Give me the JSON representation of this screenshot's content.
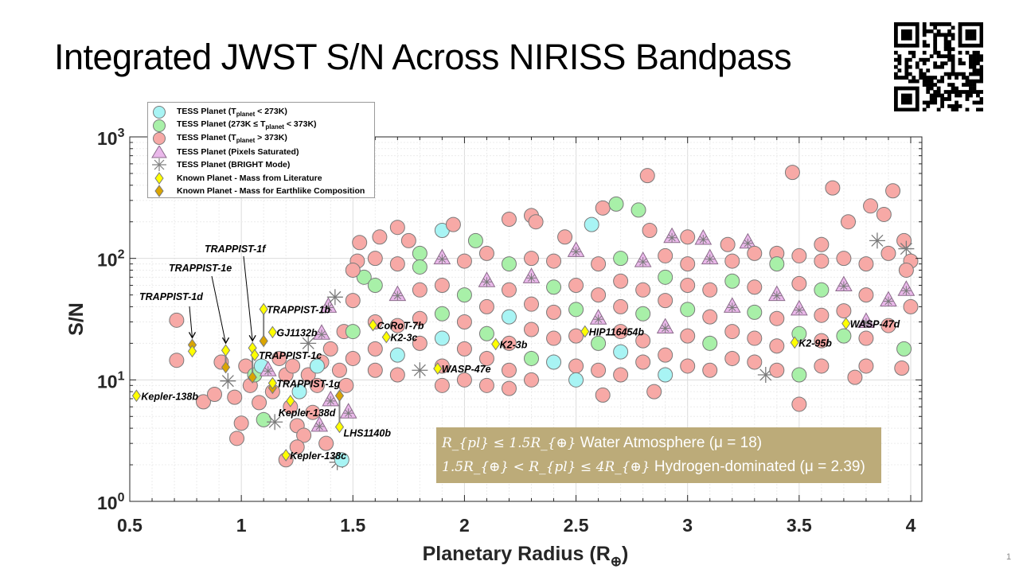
{
  "slide": {
    "title": "Integrated JWST S/N Across NIRISS Bandpass",
    "page_number": "1",
    "qr_code": "qr-code-image"
  },
  "legend": {
    "items": [
      {
        "symbol": "circle",
        "color": "#A8F4F4",
        "label_pre": "TESS Planet (T",
        "label_sub": "planet",
        "label_post": " < 273K)"
      },
      {
        "symbol": "circle",
        "color": "#A8F0A8",
        "label_pre": "TESS Planet (273K ≤ T",
        "label_sub": "planet",
        "label_post": " < 373K)"
      },
      {
        "symbol": "circle",
        "color": "#F7A9A6",
        "label_pre": "TESS Planet (T",
        "label_sub": "planet",
        "label_post": " > 373K)"
      },
      {
        "symbol": "triangle",
        "color": "#EAB8EA",
        "label_pre": "TESS Planet (Pixels Saturated)",
        "label_sub": "",
        "label_post": ""
      },
      {
        "symbol": "asterisk",
        "color": "#808080",
        "label_pre": "TESS Planet (BRIGHT Mode)",
        "label_sub": "",
        "label_post": ""
      },
      {
        "symbol": "diamond",
        "color": "#FFFF00",
        "label_pre": "Known Planet - Mass from Literature",
        "label_sub": "",
        "label_post": ""
      },
      {
        "symbol": "diamond",
        "color": "#DAA500",
        "label_pre": "Known Planet - Mass for Earthlike Composition",
        "label_sub": "",
        "label_post": ""
      }
    ]
  },
  "note": {
    "line1_math": "R_{pl} ≤ 1.5R_{⊕}",
    "line1_text": " Water Atmosphere (μ = 18)",
    "line2_math": "1.5R_{⊕} < R_{pl} ≤ 4R_{⊕}",
    "line2_text": " Hydrogen-dominated (μ = 2.39)",
    "background": "#BCAB79"
  },
  "chart_data": {
    "type": "scatter",
    "title": "",
    "xlabel": "Planetary Radius (R⊕)",
    "xlabel_main": "Planetary Radius (R",
    "xlabel_sub": "⊕",
    "xlabel_end": ")",
    "ylabel": "S/N",
    "xlim": [
      0.5,
      4.05
    ],
    "ylim": [
      1,
      1000
    ],
    "yscale": "log",
    "grid": true,
    "legend_position": "top-left",
    "x_ticks": [
      "0.5",
      "1",
      "1.5",
      "2",
      "2.5",
      "3",
      "3.5",
      "4"
    ],
    "y_ticks": [
      {
        "base": "10",
        "exp": "0"
      },
      {
        "base": "10",
        "exp": "1"
      },
      {
        "base": "10",
        "exp": "2"
      },
      {
        "base": "10",
        "exp": "3"
      }
    ],
    "colors": {
      "cool": "#A8F4F4",
      "temperate": "#A8F0A8",
      "hot": "#F7A9A6",
      "saturated": "#EAB8EA",
      "bright": "#808080",
      "literature": "#FFFF00",
      "earthlike": "#DAA500"
    },
    "category_codes": {
      "c": "TESS Planet (Tplanet < 273K)",
      "g": "TESS Planet (273K ≤ Tplanet < 373K)",
      "r": "TESS Planet (Tplanet > 373K)",
      "t": "TESS Planet (Pixels Saturated)",
      "s": "TESS Planet (BRIGHT Mode)"
    },
    "tess_points": [
      [
        0.71,
        31,
        "r"
      ],
      [
        0.71,
        14.5,
        "r"
      ],
      [
        0.83,
        6.6,
        "r"
      ],
      [
        0.88,
        7.6,
        "r"
      ],
      [
        0.91,
        14,
        "r"
      ],
      [
        0.94,
        9.8,
        "s"
      ],
      [
        0.97,
        7.2,
        "r"
      ],
      [
        0.98,
        3.3,
        "r"
      ],
      [
        1.0,
        4.4,
        "r"
      ],
      [
        1.02,
        13,
        "r"
      ],
      [
        1.04,
        9,
        "r"
      ],
      [
        1.06,
        11,
        "g"
      ],
      [
        1.09,
        13,
        "c"
      ],
      [
        1.08,
        6.5,
        "r"
      ],
      [
        1.1,
        4.7,
        "g"
      ],
      [
        1.12,
        12,
        "t"
      ],
      [
        1.14,
        8,
        "r"
      ],
      [
        1.17,
        15,
        "r"
      ],
      [
        1.2,
        11,
        "r"
      ],
      [
        1.22,
        6,
        "r"
      ],
      [
        1.25,
        4.2,
        "r"
      ],
      [
        1.23,
        13,
        "r"
      ],
      [
        1.26,
        8,
        "c"
      ],
      [
        1.28,
        3.5,
        "r"
      ],
      [
        1.3,
        11,
        "r"
      ],
      [
        1.3,
        20,
        "s"
      ],
      [
        1.32,
        5.4,
        "r"
      ],
      [
        1.34,
        9,
        "r"
      ],
      [
        1.36,
        14,
        "r"
      ],
      [
        1.36,
        24,
        "t"
      ],
      [
        1.38,
        3,
        "r"
      ],
      [
        1.39,
        40,
        "t"
      ],
      [
        1.4,
        18,
        "r"
      ],
      [
        1.4,
        6.8,
        "t"
      ],
      [
        1.42,
        48,
        "s"
      ],
      [
        1.43,
        2.1,
        "s"
      ],
      [
        1.45,
        2.2,
        "c"
      ],
      [
        1.44,
        12,
        "r"
      ],
      [
        1.46,
        25,
        "r"
      ],
      [
        1.47,
        9,
        "r"
      ],
      [
        1.48,
        5.4,
        "t"
      ],
      [
        1.2,
        2.2,
        "r"
      ],
      [
        1.25,
        2.8,
        "r"
      ],
      [
        1.15,
        4.5,
        "s"
      ],
      [
        1.34,
        13,
        "c"
      ],
      [
        1.35,
        4.2,
        "t"
      ],
      [
        1.53,
        135,
        "r"
      ],
      [
        1.52,
        95,
        "r"
      ],
      [
        1.55,
        70,
        "g"
      ],
      [
        1.62,
        150,
        "r"
      ],
      [
        1.7,
        180,
        "r"
      ],
      [
        1.75,
        140,
        "r"
      ],
      [
        1.8,
        110,
        "g"
      ],
      [
        1.9,
        170,
        "c"
      ],
      [
        1.95,
        190,
        "r"
      ],
      [
        2.05,
        140,
        "g"
      ],
      [
        2.2,
        210,
        "r"
      ],
      [
        2.3,
        225,
        "r"
      ],
      [
        2.32,
        200,
        "r"
      ],
      [
        2.45,
        150,
        "r"
      ],
      [
        2.57,
        190,
        "c"
      ],
      [
        2.62,
        260,
        "r"
      ],
      [
        2.68,
        280,
        "g"
      ],
      [
        2.78,
        250,
        "g"
      ],
      [
        2.82,
        480,
        "r"
      ],
      [
        2.83,
        170,
        "r"
      ],
      [
        2.93,
        150,
        "t"
      ],
      [
        3.0,
        150,
        "r"
      ],
      [
        3.07,
        145,
        "t"
      ],
      [
        3.18,
        130,
        "r"
      ],
      [
        3.27,
        135,
        "t"
      ],
      [
        3.4,
        110,
        "r"
      ],
      [
        3.47,
        510,
        "r"
      ],
      [
        3.6,
        130,
        "r"
      ],
      [
        3.65,
        380,
        "r"
      ],
      [
        3.72,
        200,
        "r"
      ],
      [
        3.82,
        270,
        "r"
      ],
      [
        3.88,
        230,
        "r"
      ],
      [
        3.92,
        360,
        "r"
      ],
      [
        3.97,
        140,
        "r"
      ],
      [
        3.98,
        120,
        "s"
      ],
      [
        3.85,
        140,
        "s"
      ],
      [
        1.5,
        80,
        "r"
      ],
      [
        1.5,
        45,
        "r"
      ],
      [
        1.5,
        25,
        "g"
      ],
      [
        1.5,
        15,
        "r"
      ],
      [
        1.6,
        100,
        "r"
      ],
      [
        1.6,
        60,
        "g"
      ],
      [
        1.6,
        30,
        "r"
      ],
      [
        1.6,
        18,
        "r"
      ],
      [
        1.6,
        12,
        "r"
      ],
      [
        1.7,
        90,
        "r"
      ],
      [
        1.7,
        50,
        "t"
      ],
      [
        1.7,
        28,
        "r"
      ],
      [
        1.7,
        16,
        "c"
      ],
      [
        1.7,
        11,
        "r"
      ],
      [
        1.8,
        85,
        "g"
      ],
      [
        1.8,
        55,
        "r"
      ],
      [
        1.8,
        32,
        "r"
      ],
      [
        1.8,
        20,
        "r"
      ],
      [
        1.8,
        12,
        "s"
      ],
      [
        1.9,
        100,
        "t"
      ],
      [
        1.9,
        60,
        "r"
      ],
      [
        1.9,
        35,
        "g"
      ],
      [
        1.9,
        22,
        "c"
      ],
      [
        1.9,
        13,
        "r"
      ],
      [
        1.9,
        9,
        "r"
      ],
      [
        2.0,
        95,
        "r"
      ],
      [
        2.0,
        50,
        "g"
      ],
      [
        2.0,
        30,
        "r"
      ],
      [
        2.0,
        18,
        "r"
      ],
      [
        2.0,
        10,
        "r"
      ],
      [
        2.1,
        110,
        "r"
      ],
      [
        2.1,
        65,
        "t"
      ],
      [
        2.1,
        40,
        "r"
      ],
      [
        2.1,
        24,
        "g"
      ],
      [
        2.1,
        15,
        "r"
      ],
      [
        2.1,
        9,
        "r"
      ],
      [
        2.2,
        90,
        "g"
      ],
      [
        2.2,
        55,
        "r"
      ],
      [
        2.2,
        33,
        "c"
      ],
      [
        2.2,
        20,
        "r"
      ],
      [
        2.2,
        12,
        "r"
      ],
      [
        2.2,
        8.5,
        "r"
      ],
      [
        2.3,
        100,
        "r"
      ],
      [
        2.3,
        70,
        "t"
      ],
      [
        2.3,
        42,
        "r"
      ],
      [
        2.3,
        26,
        "r"
      ],
      [
        2.3,
        15,
        "g"
      ],
      [
        2.3,
        10,
        "r"
      ],
      [
        2.4,
        95,
        "r"
      ],
      [
        2.4,
        58,
        "g"
      ],
      [
        2.4,
        36,
        "r"
      ],
      [
        2.4,
        22,
        "r"
      ],
      [
        2.4,
        14,
        "c"
      ],
      [
        2.5,
        115,
        "t"
      ],
      [
        2.5,
        60,
        "r"
      ],
      [
        2.5,
        38,
        "g"
      ],
      [
        2.5,
        23,
        "r"
      ],
      [
        2.5,
        13,
        "r"
      ],
      [
        2.5,
        10,
        "c"
      ],
      [
        2.6,
        90,
        "r"
      ],
      [
        2.6,
        50,
        "r"
      ],
      [
        2.6,
        32,
        "t"
      ],
      [
        2.6,
        20,
        "g"
      ],
      [
        2.6,
        12,
        "r"
      ],
      [
        2.62,
        7.5,
        "r"
      ],
      [
        2.7,
        100,
        "g"
      ],
      [
        2.7,
        65,
        "r"
      ],
      [
        2.7,
        40,
        "r"
      ],
      [
        2.7,
        25,
        "r"
      ],
      [
        2.7,
        17,
        "c"
      ],
      [
        2.7,
        11,
        "r"
      ],
      [
        2.8,
        95,
        "t"
      ],
      [
        2.8,
        55,
        "r"
      ],
      [
        2.8,
        35,
        "g"
      ],
      [
        2.8,
        21,
        "r"
      ],
      [
        2.8,
        14,
        "r"
      ],
      [
        2.85,
        8,
        "r"
      ],
      [
        2.9,
        105,
        "r"
      ],
      [
        2.9,
        70,
        "g"
      ],
      [
        2.9,
        45,
        "r"
      ],
      [
        2.9,
        27,
        "t"
      ],
      [
        2.9,
        16,
        "r"
      ],
      [
        2.9,
        11,
        "c"
      ],
      [
        3.0,
        90,
        "r"
      ],
      [
        3.0,
        60,
        "r"
      ],
      [
        3.0,
        38,
        "g"
      ],
      [
        3.0,
        23,
        "r"
      ],
      [
        3.0,
        13,
        "r"
      ],
      [
        3.1,
        100,
        "t"
      ],
      [
        3.1,
        55,
        "r"
      ],
      [
        3.1,
        33,
        "r"
      ],
      [
        3.1,
        20,
        "g"
      ],
      [
        3.1,
        12,
        "r"
      ],
      [
        3.2,
        95,
        "r"
      ],
      [
        3.2,
        65,
        "g"
      ],
      [
        3.2,
        40,
        "t"
      ],
      [
        3.2,
        25,
        "r"
      ],
      [
        3.2,
        15,
        "r"
      ],
      [
        3.3,
        110,
        "r"
      ],
      [
        3.3,
        58,
        "r"
      ],
      [
        3.3,
        36,
        "g"
      ],
      [
        3.3,
        22,
        "r"
      ],
      [
        3.3,
        14,
        "r"
      ],
      [
        3.35,
        11,
        "s"
      ],
      [
        3.4,
        90,
        "g"
      ],
      [
        3.4,
        50,
        "t"
      ],
      [
        3.4,
        32,
        "r"
      ],
      [
        3.4,
        19,
        "r"
      ],
      [
        3.4,
        12,
        "r"
      ],
      [
        3.5,
        105,
        "r"
      ],
      [
        3.5,
        62,
        "r"
      ],
      [
        3.5,
        38,
        "t"
      ],
      [
        3.5,
        24,
        "g"
      ],
      [
        3.5,
        11,
        "g"
      ],
      [
        3.5,
        6.3,
        "r"
      ],
      [
        3.6,
        95,
        "r"
      ],
      [
        3.6,
        55,
        "g"
      ],
      [
        3.6,
        34,
        "r"
      ],
      [
        3.6,
        21,
        "r"
      ],
      [
        3.6,
        13,
        "r"
      ],
      [
        3.7,
        100,
        "r"
      ],
      [
        3.7,
        60,
        "t"
      ],
      [
        3.7,
        37,
        "r"
      ],
      [
        3.7,
        23,
        "g"
      ],
      [
        3.75,
        10.5,
        "r"
      ],
      [
        3.8,
        90,
        "r"
      ],
      [
        3.8,
        50,
        "r"
      ],
      [
        3.8,
        30,
        "t"
      ],
      [
        3.8,
        22,
        "r"
      ],
      [
        3.8,
        13,
        "r"
      ],
      [
        3.9,
        110,
        "r"
      ],
      [
        3.9,
        45,
        "t"
      ],
      [
        3.9,
        28,
        "r"
      ],
      [
        3.97,
        18,
        "g"
      ],
      [
        3.96,
        12.5,
        "r"
      ],
      [
        4.0,
        95,
        "r"
      ],
      [
        3.98,
        55,
        "t"
      ],
      [
        4.0,
        40,
        "r"
      ],
      [
        3.98,
        80,
        "r"
      ]
    ],
    "known_planets": [
      {
        "name": "Kepler-138b",
        "radius": 0.53,
        "sn_literature": 7.4
      },
      {
        "name": "TRAPPIST-1d",
        "radius": 0.78,
        "sn_literature": 17.2,
        "sn_earthlike": 19.4
      },
      {
        "name": "TRAPPIST-1e",
        "radius": 0.93,
        "sn_literature": 17.5,
        "sn_earthlike": 12.7
      },
      {
        "name": "TRAPPIST-1f",
        "radius": 1.05,
        "sn_literature": 18.3,
        "sn_earthlike": 10.5
      },
      {
        "name": "TRAPPIST-1b",
        "radius": 1.1,
        "sn_literature": 38.2,
        "sn_earthlike": 20.9
      },
      {
        "name": "GJ1132b",
        "radius": 1.14,
        "sn_literature": 24.7
      },
      {
        "name": "TRAPPIST-1c",
        "radius": 1.06,
        "sn_literature": 16.0
      },
      {
        "name": "TRAPPIST-1g",
        "radius": 1.14,
        "sn_literature": 9.4,
        "sn_earthlike": 8.6
      },
      {
        "name": "Kepler-138d",
        "radius": 1.22,
        "sn_literature": 6.7
      },
      {
        "name": "LHS1140b",
        "radius": 1.44,
        "sn_literature": 4.1,
        "sn_earthlike": 7.4
      },
      {
        "name": "Kepler-138c",
        "radius": 1.2,
        "sn_literature": 2.4
      },
      {
        "name": "CoRoT-7b",
        "radius": 1.59,
        "sn_literature": 28.2
      },
      {
        "name": "K2-3c",
        "radius": 1.65,
        "sn_literature": 22.5
      },
      {
        "name": "WASP-47e",
        "radius": 1.88,
        "sn_literature": 12.4
      },
      {
        "name": "K2-3b",
        "radius": 2.14,
        "sn_literature": 19.7
      },
      {
        "name": "HIP116454b",
        "radius": 2.54,
        "sn_literature": 25.0
      },
      {
        "name": "K2-95b",
        "radius": 3.48,
        "sn_literature": 20.3
      },
      {
        "name": "WASP-47d",
        "radius": 3.71,
        "sn_literature": 29.1
      }
    ]
  }
}
